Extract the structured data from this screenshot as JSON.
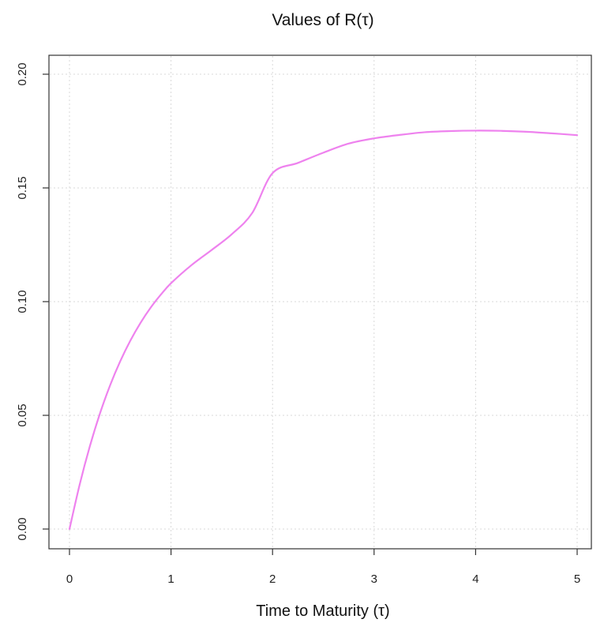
{
  "chart_data": {
    "type": "line",
    "title": "Values of R(τ)",
    "xlabel": "Time to Maturity (τ)",
    "ylabel": "",
    "xlim": [
      0,
      5
    ],
    "ylim": [
      0,
      0.2
    ],
    "x_ticks": [
      0,
      1,
      2,
      3,
      4,
      5
    ],
    "x_tick_labels": [
      "0",
      "1",
      "2",
      "3",
      "4",
      "5"
    ],
    "y_ticks": [
      0,
      0.05,
      0.1,
      0.15,
      0.2
    ],
    "y_tick_labels": [
      "0.00",
      "0.05",
      "0.10",
      "0.15",
      "0.20"
    ],
    "grid": true,
    "series": [
      {
        "color": "#ee82ee",
        "x": [
          0,
          0.1,
          0.2,
          0.3,
          0.4,
          0.5,
          0.6,
          0.7,
          0.8,
          0.9,
          1.0,
          1.2,
          1.4,
          1.6,
          1.8,
          2.0,
          2.25,
          2.5,
          2.75,
          3.0,
          3.25,
          3.5,
          3.75,
          4.0,
          4.25,
          4.5,
          4.75,
          5.0
        ],
        "y": [
          0,
          0.0195,
          0.0363,
          0.0508,
          0.0632,
          0.0738,
          0.0829,
          0.0907,
          0.0974,
          0.1031,
          0.1081,
          0.116,
          0.1227,
          0.1297,
          0.139,
          0.1565,
          0.161,
          0.1655,
          0.1695,
          0.1718,
          0.1733,
          0.1745,
          0.175,
          0.1752,
          0.1751,
          0.1747,
          0.174,
          0.1732
        ]
      }
    ]
  }
}
